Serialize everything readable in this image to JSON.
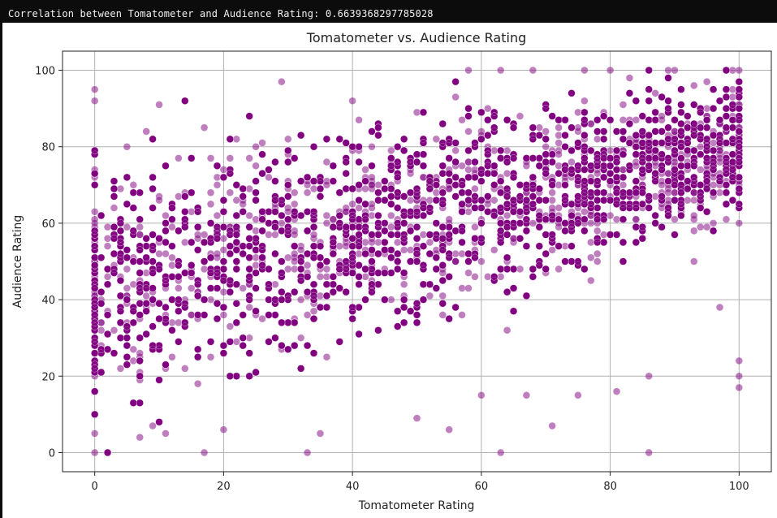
{
  "output": {
    "text": "Correlation between Tomatometer and Audience Rating: 0.6639368297785028"
  },
  "colors": {
    "marker": "#800080",
    "grid": "#b0b0b0",
    "axis": "#222222",
    "background": "#ffffff",
    "output_bg": "#0c0c0c"
  },
  "chart_data": {
    "type": "scatter",
    "title": "Tomatometer vs. Audience Rating",
    "xlabel": "Tomatometer Rating",
    "ylabel": "Audience Rating",
    "xlim": [
      -5,
      105
    ],
    "ylim": [
      -5,
      105
    ],
    "xticks": [
      0,
      20,
      40,
      60,
      80,
      100
    ],
    "yticks": [
      0,
      20,
      40,
      60,
      80,
      100
    ],
    "grid": true,
    "marker_color": "#800080",
    "marker_alpha": 0.5,
    "correlation": 0.6639368297785028,
    "notable_points": [
      {
        "x": 0,
        "y": 0
      },
      {
        "x": 0,
        "y": 95
      },
      {
        "x": 0,
        "y": 92
      },
      {
        "x": 0,
        "y": 5
      },
      {
        "x": 7,
        "y": 4
      },
      {
        "x": 17,
        "y": 0
      },
      {
        "x": 33,
        "y": 0
      },
      {
        "x": 63,
        "y": 0
      },
      {
        "x": 86,
        "y": 0
      },
      {
        "x": 55,
        "y": 6
      },
      {
        "x": 71,
        "y": 7
      },
      {
        "x": 29,
        "y": 97
      },
      {
        "x": 58,
        "y": 100
      },
      {
        "x": 63,
        "y": 100
      },
      {
        "x": 68,
        "y": 100
      },
      {
        "x": 76,
        "y": 100
      },
      {
        "x": 80,
        "y": 100
      },
      {
        "x": 89,
        "y": 100
      },
      {
        "x": 90,
        "y": 100
      },
      {
        "x": 100,
        "y": 100
      },
      {
        "x": 100,
        "y": 17
      },
      {
        "x": 100,
        "y": 20
      },
      {
        "x": 100,
        "y": 24
      },
      {
        "x": 86,
        "y": 20
      },
      {
        "x": 81,
        "y": 16
      },
      {
        "x": 60,
        "y": 15
      },
      {
        "x": 67,
        "y": 15
      },
      {
        "x": 75,
        "y": 15
      },
      {
        "x": 50,
        "y": 9
      },
      {
        "x": 35,
        "y": 5
      },
      {
        "x": 11,
        "y": 5
      },
      {
        "x": 9,
        "y": 7
      },
      {
        "x": 20,
        "y": 6
      },
      {
        "x": 5,
        "y": 80
      },
      {
        "x": 8,
        "y": 84
      },
      {
        "x": 10,
        "y": 91
      },
      {
        "x": 97,
        "y": 38
      },
      {
        "x": 93,
        "y": 50
      },
      {
        "x": 96,
        "y": 70
      },
      {
        "x": 2,
        "y": 59
      }
    ],
    "cloud": {
      "x_range": [
        0,
        100
      ],
      "y_lower_at_x0": 8,
      "y_upper_at_x0": 80,
      "y_lower_at_x100": 60,
      "y_upper_at_x100": 99,
      "approx_points": 16000
    }
  }
}
